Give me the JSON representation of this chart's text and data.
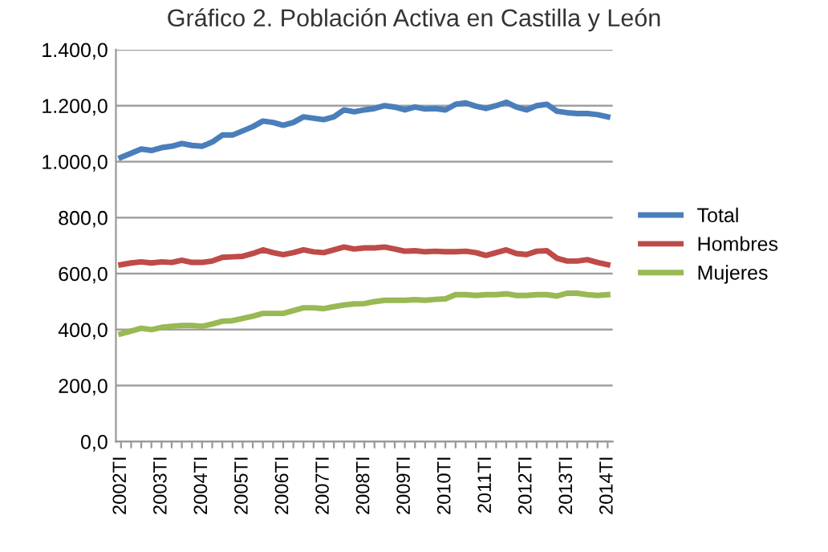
{
  "chart_data": {
    "type": "line",
    "title": "Gráfico 2. Población Activa en Castilla y León",
    "categories": [
      "2002TI",
      null,
      null,
      null,
      "2003TI",
      null,
      null,
      null,
      "2004TI",
      null,
      null,
      null,
      "2005TI",
      null,
      null,
      null,
      "2006TI",
      null,
      null,
      null,
      "2007TI",
      null,
      null,
      null,
      "2008TI",
      null,
      null,
      null,
      "2009TI",
      null,
      null,
      null,
      "2010TI",
      null,
      null,
      null,
      "2011TI",
      null,
      null,
      null,
      "2012TI",
      null,
      null,
      null,
      "2013TI",
      null,
      null,
      null,
      "2014TI"
    ],
    "series": [
      {
        "name": "Total",
        "color": "#4a7ebb",
        "values": [
          1015,
          1030,
          1045,
          1040,
          1050,
          1055,
          1065,
          1058,
          1055,
          1070,
          1095,
          1095,
          1110,
          1125,
          1145,
          1140,
          1130,
          1140,
          1160,
          1155,
          1150,
          1160,
          1185,
          1178,
          1185,
          1190,
          1200,
          1195,
          1185,
          1195,
          1188,
          1190,
          1185,
          1205,
          1210,
          1198,
          1190,
          1200,
          1212,
          1195,
          1185,
          1200,
          1205,
          1180,
          1175,
          1172,
          1172,
          1168,
          1160
        ]
      },
      {
        "name": "Hombres",
        "color": "#be4b48",
        "values": [
          632,
          638,
          642,
          638,
          642,
          640,
          648,
          640,
          640,
          645,
          658,
          660,
          662,
          672,
          685,
          675,
          668,
          675,
          685,
          678,
          675,
          685,
          695,
          688,
          692,
          692,
          695,
          688,
          680,
          682,
          678,
          680,
          678,
          678,
          680,
          675,
          665,
          675,
          685,
          672,
          668,
          680,
          682,
          655,
          645,
          645,
          650,
          640,
          632
        ]
      },
      {
        "name": "Mujeres",
        "color": "#98b954",
        "values": [
          385,
          395,
          405,
          400,
          408,
          412,
          415,
          415,
          412,
          420,
          430,
          432,
          440,
          448,
          458,
          458,
          458,
          468,
          478,
          478,
          475,
          482,
          488,
          492,
          493,
          500,
          505,
          505,
          505,
          507,
          505,
          508,
          510,
          525,
          525,
          522,
          525,
          525,
          528,
          522,
          522,
          525,
          525,
          520,
          530,
          530,
          525,
          522,
          525
        ]
      }
    ],
    "ylim": [
      0,
      1400
    ],
    "yticks": [
      {
        "value": 0,
        "label": "0,0"
      },
      {
        "value": 200,
        "label": "200,0"
      },
      {
        "value": 400,
        "label": "400,0"
      },
      {
        "value": 600,
        "label": "600,0"
      },
      {
        "value": 800,
        "label": "800,0"
      },
      {
        "value": 1000,
        "label": "1.000,0"
      },
      {
        "value": 1200,
        "label": "1.200,0"
      },
      {
        "value": 1400,
        "label": "1.400,0"
      }
    ],
    "grid": "y",
    "legend": "right",
    "marker": "none",
    "line_style": "solid"
  }
}
